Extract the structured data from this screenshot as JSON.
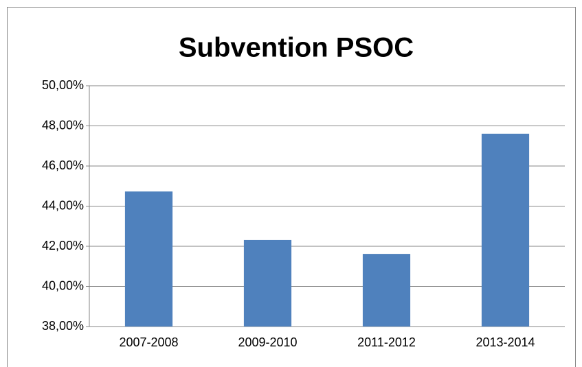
{
  "chart_data": {
    "type": "bar",
    "title": "Subvention PSOC",
    "categories": [
      "2007-2008",
      "2009-2010",
      "2011-2012",
      "2013-2014"
    ],
    "values": [
      44.73,
      42.31,
      41.62,
      47.61
    ],
    "color": "#4f81bd",
    "ylim": [
      38,
      50
    ],
    "yticks": [
      {
        "value": 38,
        "label": "38,00%"
      },
      {
        "value": 40,
        "label": "40,00%"
      },
      {
        "value": 42,
        "label": "42,00%"
      },
      {
        "value": 44,
        "label": "44,00%"
      },
      {
        "value": 46,
        "label": "46,00%"
      },
      {
        "value": 48,
        "label": "48,00%"
      },
      {
        "value": 50,
        "label": "50,00%"
      }
    ],
    "grid": true
  }
}
